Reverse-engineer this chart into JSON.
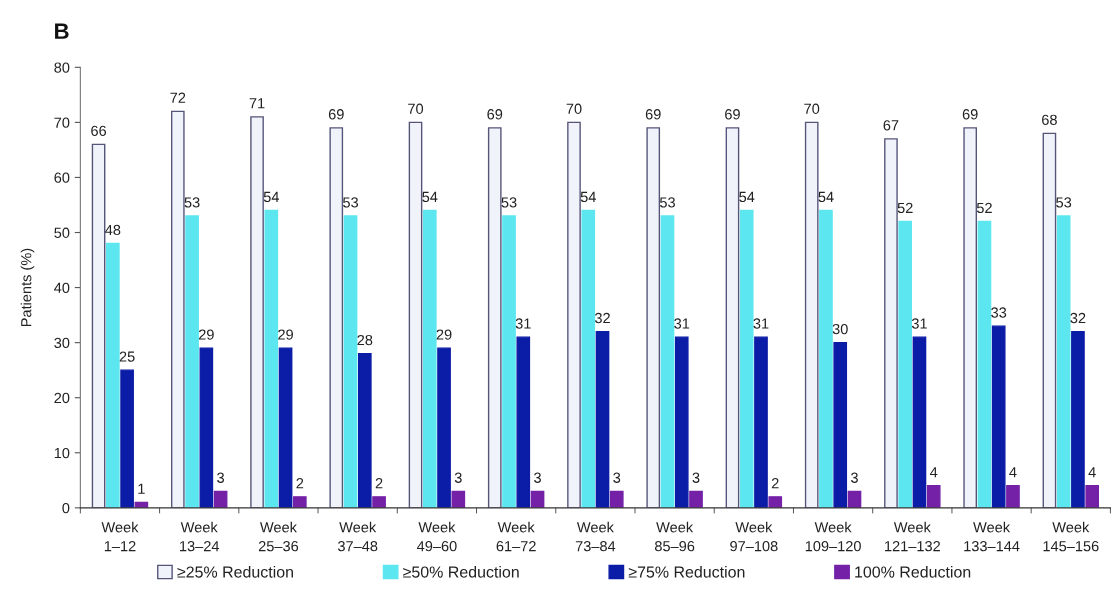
{
  "chart_data": {
    "type": "bar",
    "title": "B",
    "ylabel": "Patients (%)",
    "categories": [
      "Week\n1–12",
      "Week\n13–24",
      "Week\n25–36",
      "Week\n37–48",
      "Week\n49–60",
      "Week\n61–72",
      "Week\n73–84",
      "Week\n85–96",
      "Week\n97–108",
      "Week\n109–120",
      "Week\n121–132",
      "Week\n133–144",
      "Week\n145–156"
    ],
    "series": [
      {
        "name": "≥25% Reduction",
        "color": "#f1f3fa",
        "values": [
          66,
          72,
          71,
          69,
          70,
          69,
          70,
          69,
          69,
          70,
          67,
          69,
          68
        ]
      },
      {
        "name": "≥50% Reduction",
        "color": "#5ce6f0",
        "values": [
          48,
          53,
          54,
          53,
          54,
          53,
          54,
          53,
          54,
          54,
          52,
          52,
          53
        ]
      },
      {
        "name": "≥75% Reduction",
        "color": "#0b1ca6",
        "values": [
          25,
          29,
          29,
          28,
          29,
          31,
          32,
          31,
          31,
          30,
          31,
          33,
          32
        ]
      },
      {
        "name": "100% Reduction",
        "color": "#7421a8",
        "values": [
          1,
          3,
          2,
          2,
          3,
          3,
          3,
          3,
          2,
          3,
          4,
          4,
          4
        ]
      }
    ],
    "ylim": [
      0,
      80
    ],
    "yticks": [
      0,
      10,
      20,
      30,
      40,
      50,
      60,
      70,
      80
    ],
    "data_labels": true,
    "legend": "bottom"
  }
}
